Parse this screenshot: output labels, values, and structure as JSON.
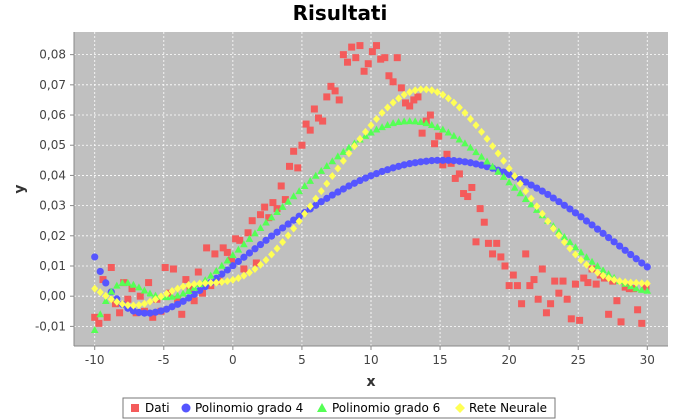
{
  "chart_data": {
    "type": "scatter",
    "title": "Risultati",
    "xlabel": "x",
    "ylabel": "y",
    "xlim": [
      -11.5,
      31.5
    ],
    "ylim": [
      -0.0165,
      0.0875
    ],
    "xticks": [
      -10,
      -5,
      0,
      5,
      10,
      15,
      20,
      25,
      30
    ],
    "xtick_labels": [
      "-10",
      "-5",
      "0",
      "5",
      "10",
      "15",
      "20",
      "25",
      "30"
    ],
    "yticks": [
      -0.01,
      0,
      0.01,
      0.02,
      0.03,
      0.04,
      0.05,
      0.06,
      0.07,
      0.08
    ],
    "ytick_labels": [
      "-0,01",
      "0,00",
      "0,01",
      "0,02",
      "0,03",
      "0,04",
      "0,05",
      "0,06",
      "0,07",
      "0,08"
    ],
    "grid": true,
    "legend_position": "bottom",
    "colors": {
      "plot_background": "#c0c0c0",
      "grid": "#ffffff",
      "Dati": "#f45b5b",
      "Polinomio grado 4": "#5555ff",
      "Polinomio grado 6": "#55ff55",
      "Rete Neurale": "#ffff55"
    },
    "series": [
      {
        "name": "Dati",
        "marker": "square",
        "x": [
          -10,
          -9.7,
          -9.4,
          -9.1,
          -8.8,
          -8.5,
          -8.2,
          -7.9,
          -7.6,
          -7.3,
          -7,
          -6.7,
          -6.4,
          -6.1,
          -5.8,
          -5.5,
          -5.2,
          -4.9,
          -4.6,
          -4.3,
          -4,
          -3.7,
          -3.4,
          -3.1,
          -2.8,
          -2.5,
          -2.2,
          -1.9,
          -1.6,
          -1.3,
          -1,
          -0.7,
          -0.4,
          -0.1,
          0.2,
          0.5,
          0.8,
          1.1,
          1.4,
          1.7,
          2,
          2.3,
          2.6,
          2.9,
          3.2,
          3.5,
          3.8,
          4.1,
          4.4,
          4.7,
          5,
          5.3,
          5.6,
          5.9,
          6.2,
          6.5,
          6.8,
          7.1,
          7.4,
          7.7,
          8,
          8.3,
          8.6,
          8.9,
          9.2,
          9.5,
          9.8,
          10.1,
          10.4,
          10.7,
          11,
          11.3,
          11.6,
          11.9,
          12.2,
          12.5,
          12.8,
          13.1,
          13.4,
          13.7,
          14,
          14.3,
          14.6,
          14.9,
          15.2,
          15.5,
          15.8,
          16.1,
          16.4,
          16.7,
          17,
          17.3,
          17.6,
          17.9,
          18.2,
          18.5,
          18.8,
          19.1,
          19.4,
          19.7,
          20,
          20.3,
          20.6,
          20.9,
          21.2,
          21.5,
          21.8,
          22.1,
          22.4,
          22.7,
          23,
          23.3,
          23.6,
          23.9,
          24.2,
          24.5,
          24.8,
          25.1,
          25.4,
          25.7,
          26,
          26.3,
          26.6,
          26.9,
          27.2,
          27.5,
          27.8,
          28.1,
          28.4,
          28.7,
          29,
          29.3,
          29.6,
          29.9
        ],
        "y": [
          -0.007,
          -0.009,
          0.0055,
          -0.007,
          0.0095,
          -0.0025,
          -0.0055,
          0.0045,
          -0.001,
          0.0025,
          -0.0055,
          0.0,
          -0.005,
          0.0045,
          -0.007,
          -0.001,
          -0.005,
          0.0095,
          0.001,
          0.009,
          -0.001,
          -0.006,
          0.0055,
          0.0025,
          -0.0015,
          0.008,
          0.001,
          0.016,
          0.0035,
          0.014,
          0.005,
          0.016,
          0.0145,
          0.012,
          0.019,
          0.0185,
          0.009,
          0.021,
          0.025,
          0.011,
          0.027,
          0.0295,
          0.026,
          0.031,
          0.029,
          0.0365,
          0.032,
          0.043,
          0.048,
          0.0425,
          0.05,
          0.057,
          0.055,
          0.062,
          0.059,
          0.058,
          0.066,
          0.0695,
          0.068,
          0.065,
          0.08,
          0.0775,
          0.0825,
          0.079,
          0.083,
          0.0745,
          0.077,
          0.081,
          0.083,
          0.0785,
          0.079,
          0.073,
          0.071,
          0.079,
          0.069,
          0.064,
          0.063,
          0.065,
          0.066,
          0.054,
          0.058,
          0.06,
          0.0505,
          0.053,
          0.0435,
          0.047,
          0.044,
          0.039,
          0.0405,
          0.034,
          0.033,
          0.036,
          0.018,
          0.029,
          0.0245,
          0.0175,
          0.014,
          0.0175,
          0.013,
          0.01,
          0.0035,
          0.007,
          0.0035,
          -0.0025,
          0.014,
          0.0035,
          0.0055,
          -0.001,
          0.009,
          -0.0055,
          -0.0025,
          0.005,
          0.001,
          0.005,
          -0.001,
          -0.0075,
          0.004,
          -0.008,
          0.006,
          0.0045,
          0.009,
          0.004,
          0.007,
          0.006,
          -0.006,
          0.005,
          -0.0015,
          -0.0085,
          0.003,
          0.0025,
          0.0025,
          -0.0045,
          -0.009,
          0.003
        ]
      },
      {
        "name": "Polinomio grado 4",
        "marker": "circle",
        "x_range": [
          -10,
          29.6
        ],
        "x_step": 0.4,
        "y": [
          0.013,
          0.0082,
          0.0044,
          0.0014,
          -0.0009,
          -0.0027,
          -0.004,
          -0.0049,
          -0.0054,
          -0.0056,
          -0.0056,
          -0.0053,
          -0.0049,
          -0.0043,
          -0.0035,
          -0.0027,
          -0.0017,
          -0.0006,
          0.0006,
          0.0019,
          0.0032,
          0.0045,
          0.0059,
          0.0073,
          0.0087,
          0.0101,
          0.0115,
          0.0129,
          0.0143,
          0.0157,
          0.0171,
          0.0185,
          0.0199,
          0.0212,
          0.0226,
          0.0239,
          0.0252,
          0.0265,
          0.0277,
          0.0289,
          0.0301,
          0.0313,
          0.0324,
          0.0335,
          0.0345,
          0.0355,
          0.0365,
          0.0374,
          0.0383,
          0.0391,
          0.0399,
          0.0406,
          0.0413,
          0.0419,
          0.0425,
          0.043,
          0.0435,
          0.0439,
          0.0442,
          0.0445,
          0.0447,
          0.0449,
          0.045,
          0.045,
          0.045,
          0.0449,
          0.0447,
          0.0445,
          0.0442,
          0.0438,
          0.0434,
          0.0429,
          0.0424,
          0.0417,
          0.0411,
          0.0403,
          0.0395,
          0.0387,
          0.0378,
          0.0368,
          0.0358,
          0.0348,
          0.0337,
          0.0325,
          0.0313,
          0.0301,
          0.0289,
          0.0276,
          0.0263,
          0.0249,
          0.0236,
          0.0222,
          0.0208,
          0.0194,
          0.018,
          0.0166,
          0.0152,
          0.0138,
          0.0124,
          0.011,
          0.0097
        ]
      },
      {
        "name": "Polinomio grado 6",
        "marker": "triangle",
        "x_range": [
          -10,
          29.6
        ],
        "x_step": 0.4,
        "y": [
          -0.0112,
          -0.006,
          -0.0016,
          0.0015,
          0.0035,
          0.0044,
          0.0044,
          0.0038,
          0.0029,
          0.0019,
          0.0009,
          0.0002,
          -0.0002,
          -0.0003,
          -0.0002,
          0.0002,
          0.0009,
          0.0017,
          0.0028,
          0.004,
          0.0053,
          0.0068,
          0.0084,
          0.0101,
          0.0118,
          0.0136,
          0.0154,
          0.0172,
          0.019,
          0.0208,
          0.0226,
          0.0244,
          0.0261,
          0.0279,
          0.0296,
          0.0313,
          0.0331,
          0.0348,
          0.0365,
          0.0382,
          0.0399,
          0.0415,
          0.0431,
          0.0447,
          0.0463,
          0.0478,
          0.0492,
          0.0506,
          0.0519,
          0.0531,
          0.0542,
          0.0552,
          0.056,
          0.0567,
          0.0573,
          0.0577,
          0.0579,
          0.058,
          0.0579,
          0.0577,
          0.0573,
          0.0567,
          0.056,
          0.0552,
          0.0542,
          0.0531,
          0.0519,
          0.0506,
          0.0492,
          0.0477,
          0.0462,
          0.0446,
          0.0429,
          0.0412,
          0.0395,
          0.0377,
          0.0359,
          0.0341,
          0.0322,
          0.0304,
          0.0286,
          0.0268,
          0.025,
          0.0232,
          0.0214,
          0.0196,
          0.0179,
          0.0162,
          0.0145,
          0.0129,
          0.0114,
          0.01,
          0.0086,
          0.0073,
          0.0061,
          0.005,
          0.0041,
          0.0033,
          0.0026,
          0.0021,
          0.0018
        ]
      },
      {
        "name": "Rete Neurale",
        "marker": "diamond",
        "x_range": [
          -10,
          29.6
        ],
        "x_step": 0.4,
        "y": [
          0.0025,
          0.0013,
          0.0001,
          -0.001,
          -0.0019,
          -0.0026,
          -0.003,
          -0.0031,
          -0.0029,
          -0.0025,
          -0.0018,
          -0.001,
          -0.0001,
          0.0008,
          0.0017,
          0.0025,
          0.0032,
          0.0037,
          0.004,
          0.0042,
          0.0043,
          0.0044,
          0.0045,
          0.0047,
          0.005,
          0.0054,
          0.006,
          0.0068,
          0.0078,
          0.009,
          0.0104,
          0.012,
          0.0138,
          0.0158,
          0.0179,
          0.0201,
          0.0224,
          0.0248,
          0.0273,
          0.0298,
          0.0323,
          0.0348,
          0.0373,
          0.0398,
          0.0423,
          0.0448,
          0.0473,
          0.0497,
          0.0521,
          0.0544,
          0.0566,
          0.0587,
          0.0607,
          0.0625,
          0.0641,
          0.0655,
          0.0667,
          0.0676,
          0.0682,
          0.0685,
          0.0685,
          0.0682,
          0.0676,
          0.0667,
          0.0655,
          0.0641,
          0.0625,
          0.0607,
          0.0587,
          0.0566,
          0.0544,
          0.0521,
          0.0497,
          0.0473,
          0.0448,
          0.0423,
          0.0398,
          0.0373,
          0.0348,
          0.0323,
          0.0298,
          0.0273,
          0.0248,
          0.0224,
          0.0201,
          0.0179,
          0.0158,
          0.0138,
          0.012,
          0.0104,
          0.009,
          0.0078,
          0.0068,
          0.006,
          0.0054,
          0.005,
          0.0047,
          0.0045,
          0.0044,
          0.0043,
          0.0042
        ]
      }
    ]
  }
}
